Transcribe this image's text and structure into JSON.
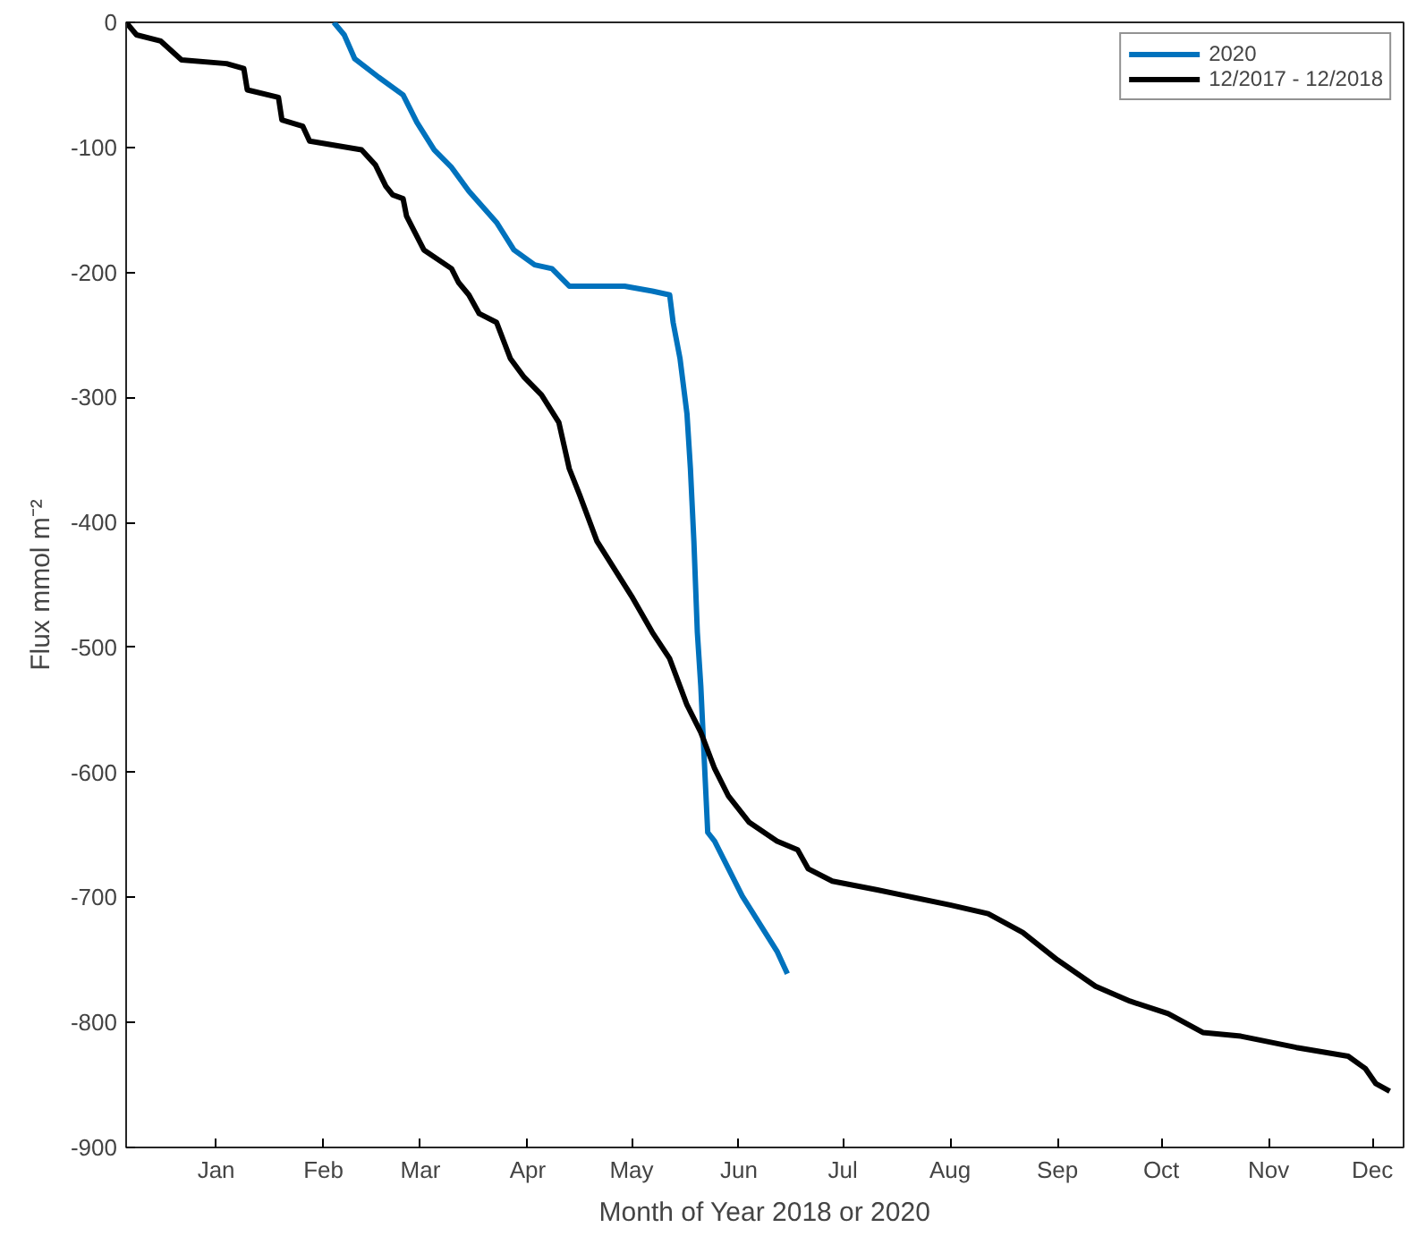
{
  "chart_data": {
    "type": "line",
    "xlabel": "Month of Year 2018 or 2020",
    "ylabel": "Flux mmol m⁻²",
    "xlim": [
      "2017-12-20",
      "2018-12-24"
    ],
    "ylim": [
      -900,
      0
    ],
    "xticks": [
      {
        "value": "2018-01-15",
        "label": "Jan"
      },
      {
        "value": "2018-02-15",
        "label": "Feb"
      },
      {
        "value": "2018-03-15",
        "label": "Mar"
      },
      {
        "value": "2018-04-15",
        "label": "Apr"
      },
      {
        "value": "2018-05-15",
        "label": "May"
      },
      {
        "value": "2018-06-15",
        "label": "Jun"
      },
      {
        "value": "2018-07-15",
        "label": "Jul"
      },
      {
        "value": "2018-08-15",
        "label": "Aug"
      },
      {
        "value": "2018-09-15",
        "label": "Sep"
      },
      {
        "value": "2018-10-15",
        "label": "Oct"
      },
      {
        "value": "2018-11-15",
        "label": "Nov"
      },
      {
        "value": "2018-12-15",
        "label": "Dec"
      }
    ],
    "yticks": [
      0,
      -100,
      -200,
      -300,
      -400,
      -500,
      -600,
      -700,
      -800,
      -900
    ],
    "grid": false,
    "legend": "top right",
    "marker": "none",
    "line_style": "solid",
    "series": [
      {
        "name": "2020",
        "color": "#0072bd",
        "x": [
          "2018-02-18",
          "2018-02-21",
          "2018-02-24",
          "2018-03-03",
          "2018-03-10",
          "2018-03-14",
          "2018-03-19",
          "2018-03-24",
          "2018-03-29",
          "2018-04-06",
          "2018-04-11",
          "2018-04-17",
          "2018-04-22",
          "2018-04-27",
          "2018-05-05",
          "2018-05-13",
          "2018-05-21",
          "2018-05-26",
          "2018-05-27",
          "2018-05-29",
          "2018-05-31",
          "2018-06-01",
          "2018-06-02",
          "2018-06-03",
          "2018-06-04",
          "2018-06-05",
          "2018-06-06",
          "2018-06-08",
          "2018-06-12",
          "2018-06-16",
          "2018-06-21",
          "2018-06-26",
          "2018-06-29"
        ],
        "values": [
          0,
          -10,
          -29,
          -44,
          -58,
          -80,
          -102,
          -116,
          -135,
          -160,
          -182,
          -194,
          -197,
          -211,
          -211,
          -211,
          -215,
          -218,
          -240,
          -269,
          -313,
          -357,
          -415,
          -488,
          -531,
          -590,
          -648,
          -655,
          -677,
          -699,
          -721,
          -743,
          -761
        ]
      },
      {
        "name": "12/2017 - 12/2018",
        "color": "#000000",
        "x": [
          "2017-12-20",
          "2017-12-23",
          "2017-12-30",
          "2018-01-05",
          "2018-01-18",
          "2018-01-23",
          "2018-01-24",
          "2018-02-02",
          "2018-02-03",
          "2018-02-09",
          "2018-02-11",
          "2018-02-26",
          "2018-03-02",
          "2018-03-05",
          "2018-03-07",
          "2018-03-10",
          "2018-03-11",
          "2018-03-16",
          "2018-03-24",
          "2018-03-26",
          "2018-03-29",
          "2018-04-01",
          "2018-04-06",
          "2018-04-10",
          "2018-04-14",
          "2018-04-19",
          "2018-04-24",
          "2018-04-27",
          "2018-04-30",
          "2018-05-05",
          "2018-05-10",
          "2018-05-15",
          "2018-05-21",
          "2018-05-26",
          "2018-05-31",
          "2018-06-04",
          "2018-06-08",
          "2018-06-12",
          "2018-06-18",
          "2018-06-26",
          "2018-07-02",
          "2018-07-05",
          "2018-07-12",
          "2018-07-25",
          "2018-08-15",
          "2018-08-26",
          "2018-09-05",
          "2018-09-15",
          "2018-09-26",
          "2018-10-06",
          "2018-10-17",
          "2018-10-27",
          "2018-11-07",
          "2018-11-23",
          "2018-12-08",
          "2018-12-13",
          "2018-12-16",
          "2018-12-20"
        ],
        "values": [
          0,
          -10,
          -15,
          -30,
          -33,
          -37,
          -54,
          -60,
          -78,
          -83,
          -95,
          -102,
          -114,
          -131,
          -138,
          -141,
          -155,
          -182,
          -197,
          -208,
          -218,
          -233,
          -240,
          -269,
          -284,
          -298,
          -320,
          -357,
          -378,
          -415,
          -437,
          -459,
          -488,
          -509,
          -546,
          -568,
          -597,
          -619,
          -640,
          -655,
          -662,
          -677,
          -687,
          -694,
          -706,
          -713,
          -728,
          -750,
          -771,
          -783,
          -793,
          -808,
          -811,
          -820,
          -827,
          -837,
          -849,
          -855
        ]
      }
    ]
  }
}
